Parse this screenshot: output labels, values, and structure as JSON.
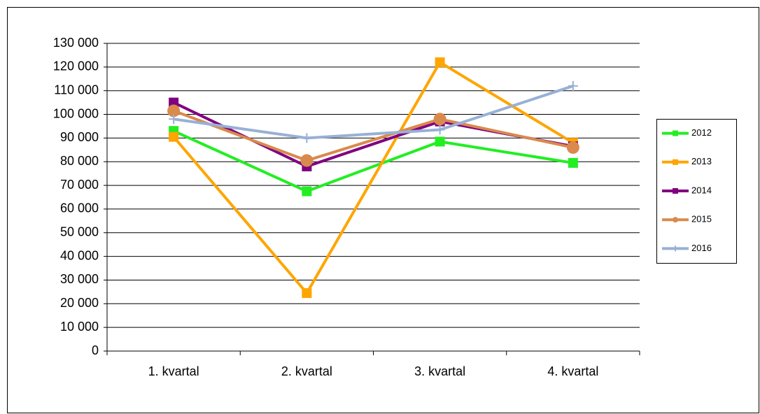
{
  "chart_data": {
    "type": "line",
    "categories": [
      "1. kvartal",
      "2. kvartal",
      "3. kvartal",
      "4. kvartal"
    ],
    "series": [
      {
        "name": "2012",
        "color": "#22ee22",
        "marker": "square",
        "values": [
          93000,
          67500,
          88500,
          79500
        ]
      },
      {
        "name": "2013",
        "color": "#ffa500",
        "marker": "square",
        "values": [
          90500,
          24500,
          122000,
          88000
        ]
      },
      {
        "name": "2014",
        "color": "#800080",
        "marker": "square",
        "values": [
          105000,
          78000,
          97000,
          86500
        ]
      },
      {
        "name": "2015",
        "color": "#d98a4c",
        "marker": "circle",
        "values": [
          101500,
          80500,
          98000,
          86000
        ]
      },
      {
        "name": "2016",
        "color": "#98b0d6",
        "marker": "plus",
        "values": [
          98000,
          90000,
          93500,
          112000
        ]
      }
    ],
    "ylim": [
      0,
      130000
    ],
    "yticks": [
      0,
      {
        "value": 10000,
        "label": "10 000"
      },
      {
        "value": 20000,
        "label": "20 000"
      },
      {
        "value": 30000,
        "label": "30 000"
      },
      {
        "value": 40000,
        "label": "40 000"
      },
      {
        "value": 50000,
        "label": "50 000"
      },
      {
        "value": 60000,
        "label": "60 000"
      },
      {
        "value": 70000,
        "label": "70 000"
      },
      {
        "value": 80000,
        "label": "80 000"
      },
      {
        "value": 90000,
        "label": "90 000"
      },
      {
        "value": 100000,
        "label": "100 000"
      },
      {
        "value": 110000,
        "label": "110 000"
      },
      {
        "value": 120000,
        "label": "120 000"
      },
      {
        "value": 130000,
        "label": "130 000"
      }
    ],
    "grid": true,
    "legend": "right"
  }
}
